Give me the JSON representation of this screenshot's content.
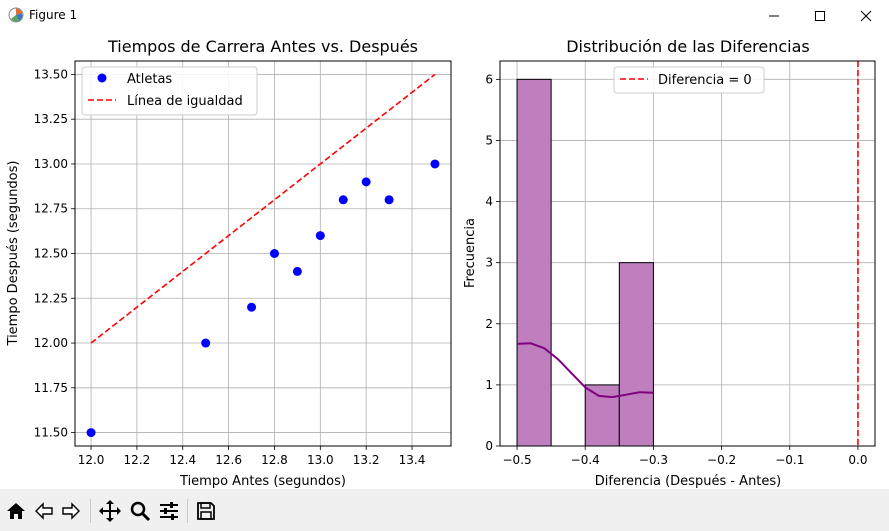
{
  "window": {
    "title": "Figure 1"
  },
  "toolbar": {
    "buttons": [
      {
        "name": "home-button",
        "icon": "home-icon"
      },
      {
        "name": "back-button",
        "icon": "back-arrow-icon"
      },
      {
        "name": "forward-button",
        "icon": "forward-arrow-icon"
      },
      {
        "name": "pan-button",
        "icon": "move-icon"
      },
      {
        "name": "zoom-button",
        "icon": "magnifier-icon"
      },
      {
        "name": "configure-subplots-button",
        "icon": "sliders-icon"
      },
      {
        "name": "save-button",
        "icon": "save-icon"
      }
    ]
  },
  "chart_data": [
    {
      "type": "scatter",
      "title": "Tiempos de Carrera Antes vs. Después",
      "xlabel": "Tiempo Antes (segundos)",
      "ylabel": "Tiempo Después (segundos)",
      "xlim": [
        11.93,
        13.57
      ],
      "ylim": [
        11.425,
        13.575
      ],
      "xticks": [
        "12.0",
        "12.2",
        "12.4",
        "12.6",
        "12.8",
        "13.0",
        "13.2",
        "13.4"
      ],
      "yticks": [
        "11.50",
        "11.75",
        "12.00",
        "12.25",
        "12.50",
        "12.75",
        "13.00",
        "13.25",
        "13.50"
      ],
      "grid": true,
      "legend_position": "top-left",
      "series": [
        {
          "name": "Atletas",
          "kind": "scatter",
          "color": "#0000ff",
          "x": [
            12.0,
            12.5,
            12.7,
            12.8,
            12.9,
            13.0,
            13.1,
            13.2,
            13.3,
            13.5
          ],
          "y": [
            11.5,
            12.0,
            12.2,
            12.5,
            12.4,
            12.6,
            12.8,
            12.9,
            12.8,
            13.0
          ]
        },
        {
          "name": "Línea de igualdad",
          "kind": "dashed-line",
          "color": "#ff0000",
          "x": [
            12.0,
            13.5
          ],
          "y": [
            12.0,
            13.5
          ]
        }
      ]
    },
    {
      "type": "bar",
      "title": "Distribución de las Diferencias",
      "xlabel": "Diferencia (Después - Antes)",
      "ylabel": "Frecuencia",
      "xlim": [
        -0.525,
        0.025
      ],
      "ylim": [
        0,
        6.3
      ],
      "xticks": [
        "−0.5",
        "−0.4",
        "−0.3",
        "−0.2",
        "−0.1",
        "0.0"
      ],
      "yticks": [
        "0",
        "1",
        "2",
        "3",
        "4",
        "5",
        "6"
      ],
      "grid": true,
      "legend_position": "top-center",
      "bar_color": "#bf7fbf",
      "bins": [
        {
          "x0": -0.5,
          "x1": -0.45,
          "count": 6
        },
        {
          "x0": -0.45,
          "x1": -0.4,
          "count": 0
        },
        {
          "x0": -0.4,
          "x1": -0.35,
          "count": 1
        },
        {
          "x0": -0.35,
          "x1": -0.3,
          "count": 3
        }
      ],
      "kde": {
        "color": "#800080",
        "x": [
          -0.5,
          -0.48,
          -0.46,
          -0.44,
          -0.42,
          -0.4,
          -0.38,
          -0.36,
          -0.34,
          -0.32,
          -0.3
        ],
        "y": [
          1.67,
          1.68,
          1.6,
          1.42,
          1.19,
          0.96,
          0.82,
          0.8,
          0.84,
          0.88,
          0.87
        ]
      },
      "vline": {
        "name": "Diferencia = 0",
        "x": 0.0,
        "color": "#ff0000"
      }
    }
  ]
}
